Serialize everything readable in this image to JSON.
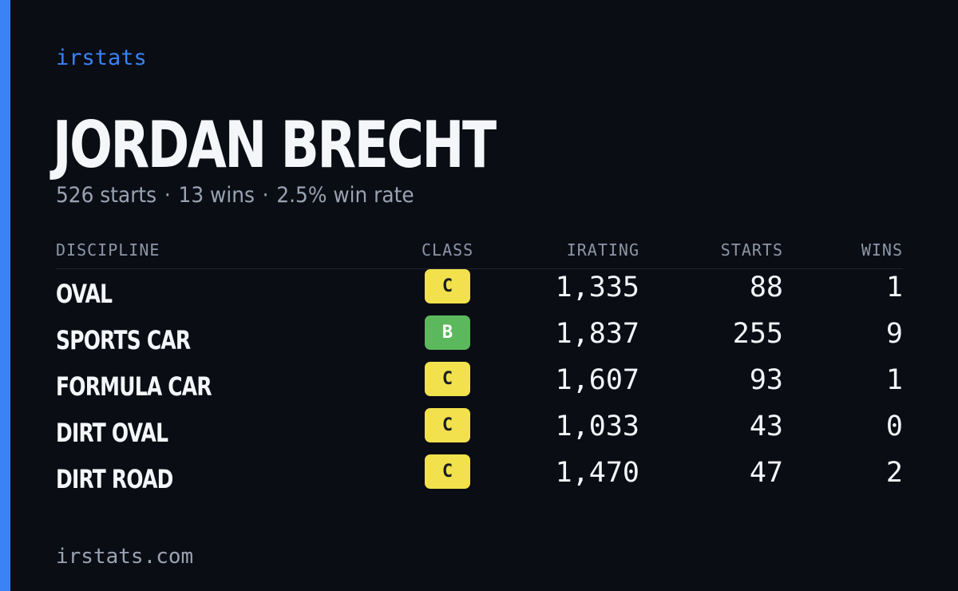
{
  "brand": "irstats",
  "player": {
    "name": "JORDAN BRECHT"
  },
  "summary": {
    "starts": "526 starts",
    "wins": "13 wins",
    "win_rate": "2.5% win rate",
    "separator": "·"
  },
  "table": {
    "headers": {
      "discipline": "DISCIPLINE",
      "class": "CLASS",
      "irating": "IRATING",
      "starts": "STARTS",
      "wins": "WINS"
    },
    "rows": [
      {
        "discipline": "OVAL",
        "class": "C",
        "irating": "1,335",
        "starts": "88",
        "wins": "1"
      },
      {
        "discipline": "SPORTS CAR",
        "class": "B",
        "irating": "1,837",
        "starts": "255",
        "wins": "9"
      },
      {
        "discipline": "FORMULA CAR",
        "class": "C",
        "irating": "1,607",
        "starts": "93",
        "wins": "1"
      },
      {
        "discipline": "DIRT OVAL",
        "class": "C",
        "irating": "1,033",
        "starts": "43",
        "wins": "0"
      },
      {
        "discipline": "DIRT ROAD",
        "class": "C",
        "irating": "1,470",
        "starts": "47",
        "wins": "2"
      }
    ]
  },
  "footer": {
    "domain": "irstats.com"
  },
  "colors": {
    "accent": "#3b82f6",
    "background": "#0a0d14",
    "class_c": "#f2e14c",
    "class_b": "#5cb85c"
  }
}
